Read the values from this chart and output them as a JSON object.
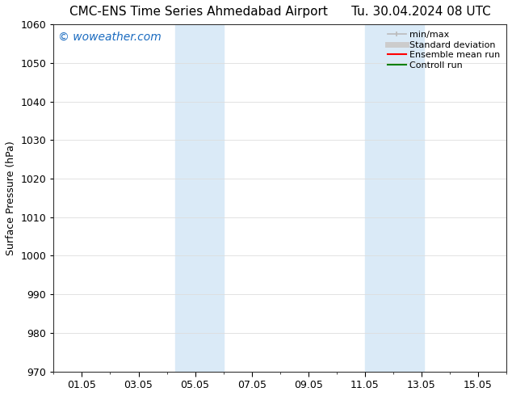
{
  "title": "CMC-ENS Time Series Ahmedabad Airport      Tu. 30.04.2024 08 UTC",
  "ylabel": "Surface Pressure (hPa)",
  "ylim": [
    970,
    1060
  ],
  "yticks": [
    970,
    980,
    990,
    1000,
    1010,
    1020,
    1030,
    1040,
    1050,
    1060
  ],
  "xtick_labels": [
    "01.05",
    "03.05",
    "05.05",
    "07.05",
    "09.05",
    "11.05",
    "13.05",
    "15.05"
  ],
  "xtick_positions": [
    1,
    3,
    5,
    7,
    9,
    11,
    13,
    15
  ],
  "xlim": [
    0.0,
    16.0
  ],
  "shaded_bands": [
    {
      "x_start": 4.3,
      "x_end": 6.0
    },
    {
      "x_start": 11.0,
      "x_end": 13.1
    }
  ],
  "shade_color": "#daeaf7",
  "watermark": "© woweather.com",
  "watermark_color": "#1a6bc0",
  "legend_entries": [
    {
      "label": "min/max",
      "color": "#bbbbbb",
      "lw": 1.2
    },
    {
      "label": "Standard deviation",
      "color": "#cccccc",
      "lw": 5
    },
    {
      "label": "Ensemble mean run",
      "color": "#ff0000",
      "lw": 1.5
    },
    {
      "label": "Controll run",
      "color": "#008000",
      "lw": 1.5
    }
  ],
  "bg_color": "#ffffff",
  "plot_bg_color": "#ffffff",
  "grid_color": "#dddddd",
  "title_fontsize": 11,
  "ylabel_fontsize": 9,
  "tick_fontsize": 9,
  "legend_fontsize": 8,
  "watermark_fontsize": 10
}
